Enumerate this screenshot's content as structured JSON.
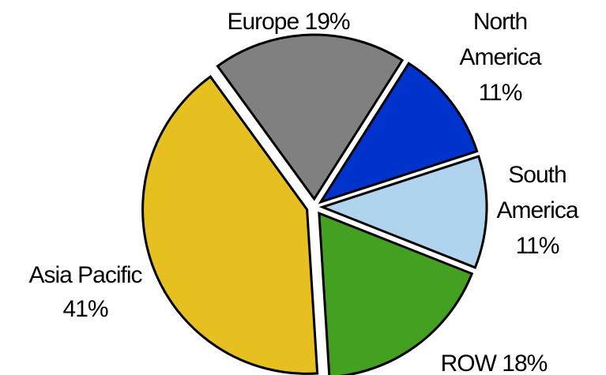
{
  "chart_data": {
    "type": "pie",
    "title": "",
    "slices": [
      {
        "label": "Europe",
        "value": 19,
        "value_text": "19%",
        "color": "#808080",
        "label_lines": [
          "Europe 19%"
        ]
      },
      {
        "label": "North America",
        "value": 11,
        "value_text": "11%",
        "color": "#0033cc",
        "label_lines": [
          "North",
          "America",
          "11%"
        ]
      },
      {
        "label": "South America",
        "value": 11,
        "value_text": "11%",
        "color": "#b0d4ee",
        "label_lines": [
          "South",
          "America",
          "11%"
        ]
      },
      {
        "label": "ROW",
        "value": 18,
        "value_text": "18%",
        "color": "#44a020",
        "label_lines": [
          "ROW 18%"
        ]
      },
      {
        "label": "Asia Pacific",
        "value": 41,
        "value_text": "41%",
        "color": "#e6bf20",
        "label_lines": [
          "Asia Pacific",
          "41%"
        ]
      }
    ],
    "legend": "none",
    "start_angle_deg": -36,
    "direction": "clockwise",
    "exploded": true
  }
}
